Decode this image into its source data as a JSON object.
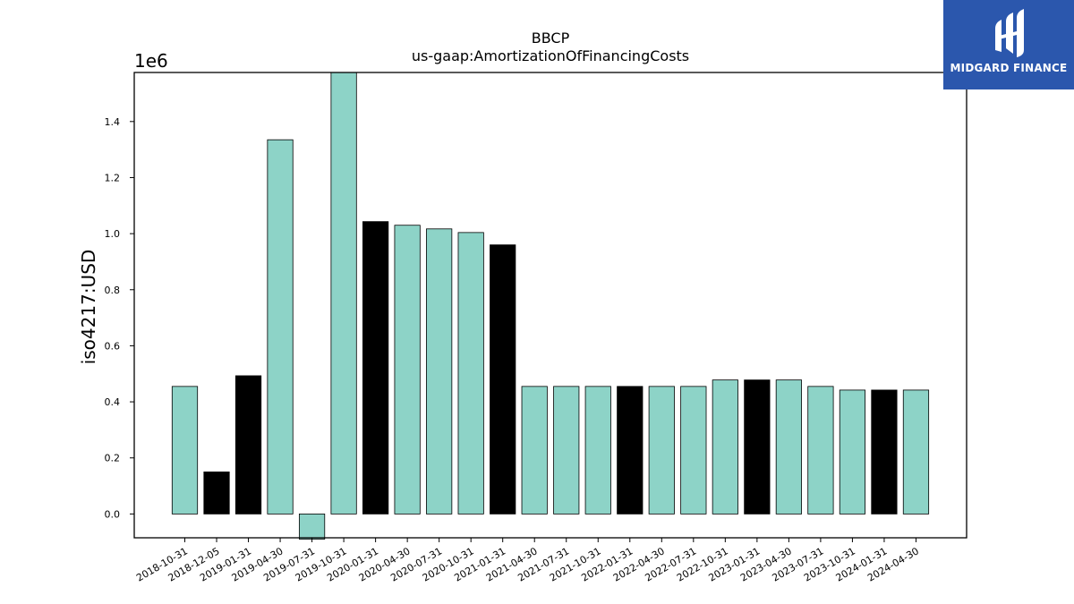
{
  "chart_data": {
    "type": "bar",
    "title": "BBCP",
    "subtitle": "us-gaap:AmortizationOfFinancingCosts",
    "ylabel": "iso4217:USD",
    "offset_text": "1e6",
    "categories": [
      "2018-10-31",
      "2018-12-05",
      "2019-01-31",
      "2019-04-30",
      "2019-07-31",
      "2019-10-31",
      "2020-01-31",
      "2020-04-30",
      "2020-07-31",
      "2020-10-31",
      "2021-01-31",
      "2021-04-30",
      "2021-07-31",
      "2021-10-31",
      "2022-01-31",
      "2022-04-30",
      "2022-07-31",
      "2022-10-31",
      "2023-01-31",
      "2023-04-30",
      "2023-07-31",
      "2023-10-31",
      "2024-01-31",
      "2024-04-30"
    ],
    "values": [
      455000,
      150000,
      493000,
      1335000,
      -90000,
      1575000,
      1043000,
      1030000,
      1017000,
      1004000,
      960000,
      455000,
      455000,
      455000,
      455000,
      455000,
      455000,
      478000,
      478000,
      478000,
      455000,
      442000,
      442000,
      442000
    ],
    "bar_colors": [
      "#8dd3c7",
      "#000000",
      "#000000",
      "#8dd3c7",
      "#8dd3c7",
      "#8dd3c7",
      "#000000",
      "#8dd3c7",
      "#8dd3c7",
      "#8dd3c7",
      "#000000",
      "#8dd3c7",
      "#8dd3c7",
      "#8dd3c7",
      "#000000",
      "#8dd3c7",
      "#8dd3c7",
      "#8dd3c7",
      "#000000",
      "#8dd3c7",
      "#8dd3c7",
      "#8dd3c7",
      "#000000",
      "#8dd3c7"
    ],
    "ylim": [
      -85000,
      1575000
    ],
    "yticks": [
      0,
      200000,
      400000,
      600000,
      800000,
      1000000,
      1200000,
      1400000
    ],
    "ytick_labels": [
      "0.0",
      "0.2",
      "0.4",
      "0.6",
      "0.8",
      "1.0",
      "1.2",
      "1.4"
    ],
    "grid": false,
    "legend": "none"
  },
  "logo": {
    "text": "MIDGARD FINANCE",
    "color": "#2b57ad"
  }
}
